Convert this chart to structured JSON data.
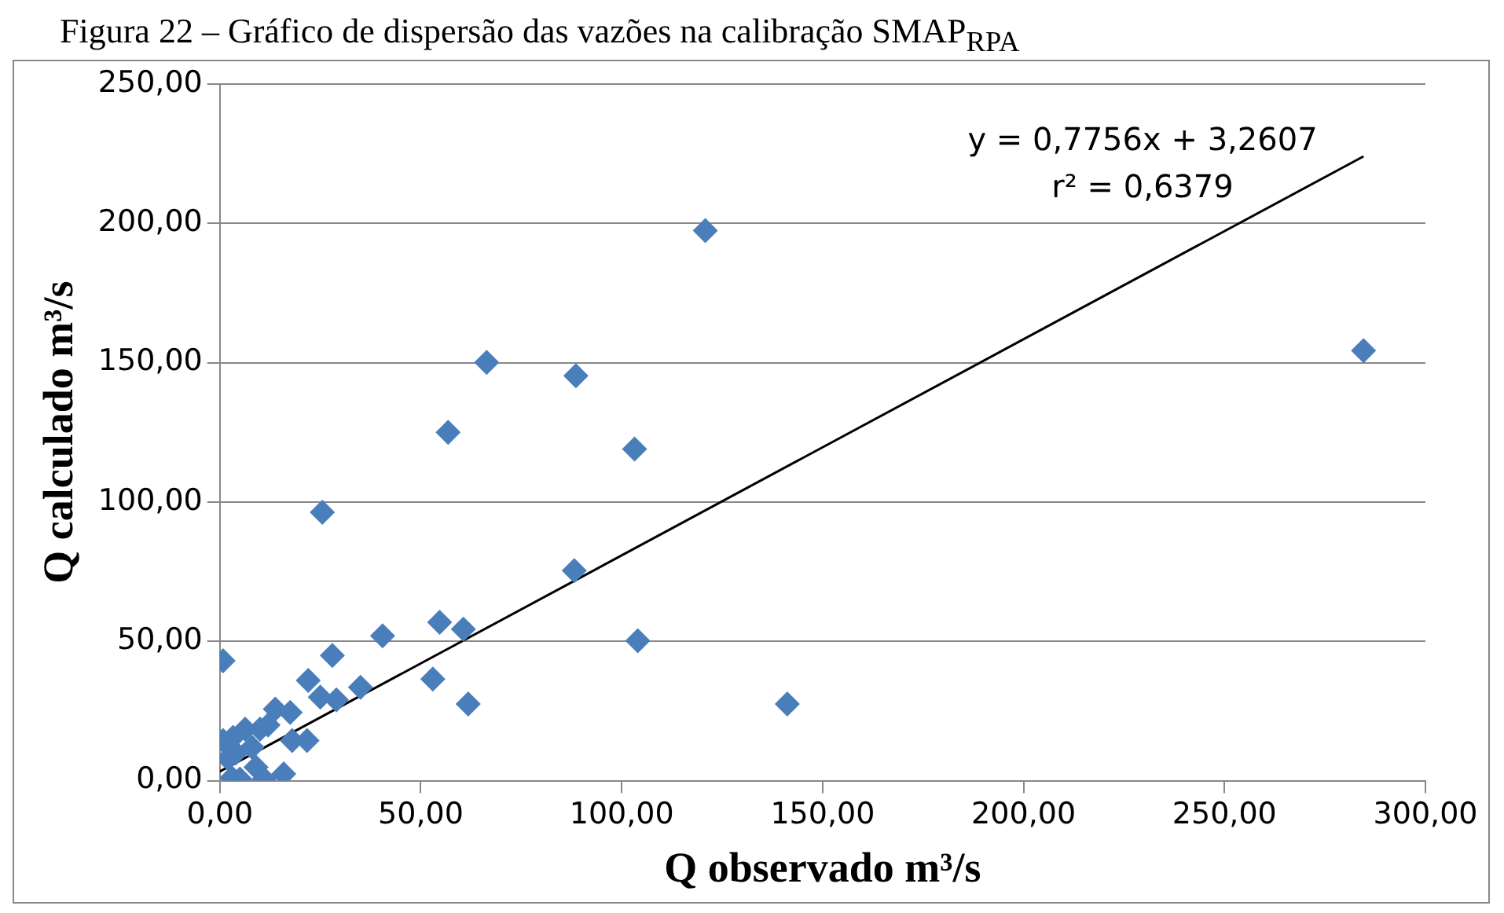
{
  "chart_data": {
    "type": "scatter",
    "title": "Figura 22 – Gráfico de dispersão das vazões na calibração SMAP$_{RPA}$",
    "xlabel": "Q observado m³/s",
    "ylabel": "Q calculado m³/s",
    "annotations": [
      "y = 0,7756x + 3,2607",
      "r² = 0,6379"
    ],
    "xlim": [
      0,
      300
    ],
    "ylim": [
      0,
      250
    ],
    "xticks": [
      {
        "value": 0,
        "label": "0,00"
      },
      {
        "value": 50,
        "label": "50,00"
      },
      {
        "value": 100,
        "label": "100,00"
      },
      {
        "value": 150,
        "label": "150,00"
      },
      {
        "value": 200,
        "label": "200,00"
      },
      {
        "value": 250,
        "label": "250,00"
      },
      {
        "value": 300,
        "label": "300,00"
      }
    ],
    "yticks": [
      {
        "value": 0,
        "label": "0,00"
      },
      {
        "value": 50,
        "label": "50,00"
      },
      {
        "value": 100,
        "label": "100,00"
      },
      {
        "value": 150,
        "label": "150,00"
      },
      {
        "value": 200,
        "label": "200,00"
      },
      {
        "value": 250,
        "label": "250,00"
      }
    ],
    "grid": "y",
    "legend": false,
    "marker": "diamond",
    "series": [
      {
        "color": "#4a7ebb",
        "x": [
          120.8,
          284.6,
          66.4,
          88.6,
          56.8,
          103.2,
          25.5,
          88.2,
          40.5,
          54.7,
          60.6,
          28,
          104,
          0.8,
          53,
          35,
          61.8,
          141.2,
          22,
          25,
          29,
          13.8,
          17.5,
          21.7,
          18,
          0.8,
          3.3,
          9,
          15.9,
          11,
          5,
          6.3,
          10,
          2,
          4,
          3,
          8,
          12
        ],
        "values": [
          197.4,
          154.3,
          150.1,
          145.3,
          125,
          119,
          96.3,
          75.4,
          52,
          56.8,
          54.4,
          44.9,
          50.2,
          43,
          36.5,
          33.5,
          27.5,
          27.5,
          36,
          30,
          29,
          25.7,
          24.5,
          14.4,
          14.4,
          14.4,
          15.5,
          4.8,
          2.4,
          0.6,
          0.6,
          18.5,
          18.5,
          8,
          10,
          1,
          12,
          20
        ]
      },
      {
        "type": "line",
        "color": "#000000",
        "marker": "none",
        "x": [
          0,
          284.6
        ],
        "values": [
          3.3,
          224
        ]
      }
    ]
  }
}
